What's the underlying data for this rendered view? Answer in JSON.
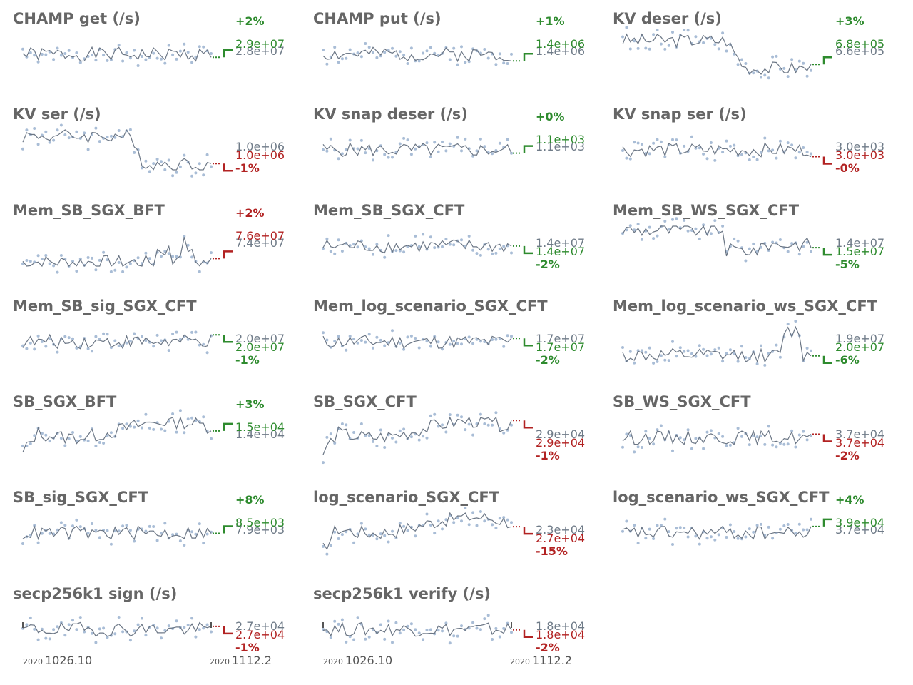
{
  "colors": {
    "line": "#6b7685",
    "dot": "#a9bdd6",
    "good": "#2e8b2e",
    "bad": "#b22222",
    "title": "#666666"
  },
  "axis": {
    "start_year": "2020",
    "start_label": "1026.10",
    "end_year": "2020",
    "end_label": "1112.2"
  },
  "chart_data": [
    {
      "type": "line",
      "title": "CHAMP get (/s)",
      "prev": "2.9e+07",
      "cur": "2.8e+07",
      "change": "+2%",
      "direction": "up",
      "good": true,
      "shape": "flat",
      "seed": 1
    },
    {
      "type": "line",
      "title": "CHAMP put (/s)",
      "prev": "1.4e+06",
      "cur": "1.4e+06",
      "change": "+1%",
      "direction": "up",
      "good": true,
      "shape": "flat",
      "seed": 2
    },
    {
      "type": "line",
      "title": "KV deser (/s)",
      "prev": "6.8e+05",
      "cur": "6.6e+05",
      "change": "+3%",
      "direction": "up",
      "good": true,
      "shape": "stepdown",
      "seed": 3
    },
    {
      "type": "line",
      "title": "KV ser (/s)",
      "prev": "1.0e+06",
      "cur": "1.0e+06",
      "change": "-1%",
      "direction": "down",
      "good": false,
      "shape": "stepdown",
      "seed": 4
    },
    {
      "type": "line",
      "title": "KV snap deser (/s)",
      "prev": "1.1e+03",
      "cur": "1.1e+03",
      "change": "+0%",
      "direction": "up",
      "good": true,
      "shape": "flat",
      "seed": 5
    },
    {
      "type": "line",
      "title": "KV snap ser (/s)",
      "prev": "3.0e+03",
      "cur": "3.0e+03",
      "change": "-0%",
      "direction": "down",
      "good": false,
      "shape": "flat",
      "seed": 6
    },
    {
      "type": "line",
      "title": "Mem_SB_SGX_BFT",
      "prev": "7.6e+07",
      "cur": "7.4e+07",
      "change": "+2%",
      "direction": "up",
      "good": false,
      "shape": "bumpend",
      "seed": 7
    },
    {
      "type": "line",
      "title": "Mem_SB_SGX_CFT",
      "prev": "1.4e+07",
      "cur": "1.4e+07",
      "change": "-2%",
      "direction": "down",
      "good": true,
      "shape": "flat",
      "seed": 8
    },
    {
      "type": "line",
      "title": "Mem_SB_WS_SGX_CFT",
      "prev": "1.5e+07",
      "cur": "1.4e+07",
      "change": "-5%",
      "direction": "down",
      "good": true,
      "shape": "highflat",
      "seed": 9
    },
    {
      "type": "line",
      "title": "Mem_SB_sig_SGX_CFT",
      "prev": "2.0e+07",
      "cur": "2.0e+07",
      "change": "-1%",
      "direction": "down",
      "good": true,
      "shape": "flat",
      "seed": 10
    },
    {
      "type": "line",
      "title": "Mem_log_scenario_SGX_CFT",
      "prev": "1.7e+07",
      "cur": "1.7e+07",
      "change": "-2%",
      "direction": "down",
      "good": true,
      "shape": "flat",
      "seed": 11
    },
    {
      "type": "line",
      "title": "Mem_log_scenario_ws_SGX_CFT",
      "prev": "2.0e+07",
      "cur": "1.9e+07",
      "change": "-6%",
      "direction": "down",
      "good": true,
      "shape": "lowbump",
      "seed": 12
    },
    {
      "type": "line",
      "title": "SB_SGX_BFT",
      "prev": "1.5e+04",
      "cur": "1.4e+04",
      "change": "+3%",
      "direction": "up",
      "good": true,
      "shape": "rise",
      "seed": 13
    },
    {
      "type": "line",
      "title": "SB_SGX_CFT",
      "prev": "2.9e+04",
      "cur": "2.9e+04",
      "change": "-1%",
      "direction": "down",
      "good": false,
      "shape": "rise",
      "seed": 14
    },
    {
      "type": "line",
      "title": "SB_WS_SGX_CFT",
      "prev": "3.7e+04",
      "cur": "3.7e+04",
      "change": "-2%",
      "direction": "down",
      "good": false,
      "shape": "flat",
      "seed": 15
    },
    {
      "type": "line",
      "title": "SB_sig_SGX_CFT",
      "prev": "8.5e+03",
      "cur": "7.9e+03",
      "change": "+8%",
      "direction": "up",
      "good": true,
      "shape": "flat",
      "seed": 16
    },
    {
      "type": "line",
      "title": "log_scenario_SGX_CFT",
      "prev": "2.7e+04",
      "cur": "2.3e+04",
      "change": "-15%",
      "direction": "down",
      "good": false,
      "shape": "rise",
      "seed": 17
    },
    {
      "type": "line",
      "title": "log_scenario_ws_SGX_CFT",
      "prev": "3.9e+04",
      "cur": "3.7e+04",
      "change": "+4%",
      "direction": "up",
      "good": true,
      "shape": "flat",
      "seed": 18
    },
    {
      "type": "line",
      "title": "secp256k1 sign (/s)",
      "prev": "2.7e+04",
      "cur": "2.7e+04",
      "change": "-1%",
      "direction": "down",
      "good": false,
      "shape": "flat",
      "seed": 19,
      "axis": true
    },
    {
      "type": "line",
      "title": "secp256k1 verify (/s)",
      "prev": "1.8e+04",
      "cur": "1.8e+04",
      "change": "-2%",
      "direction": "down",
      "good": false,
      "shape": "flat",
      "seed": 20,
      "axis": true
    }
  ]
}
